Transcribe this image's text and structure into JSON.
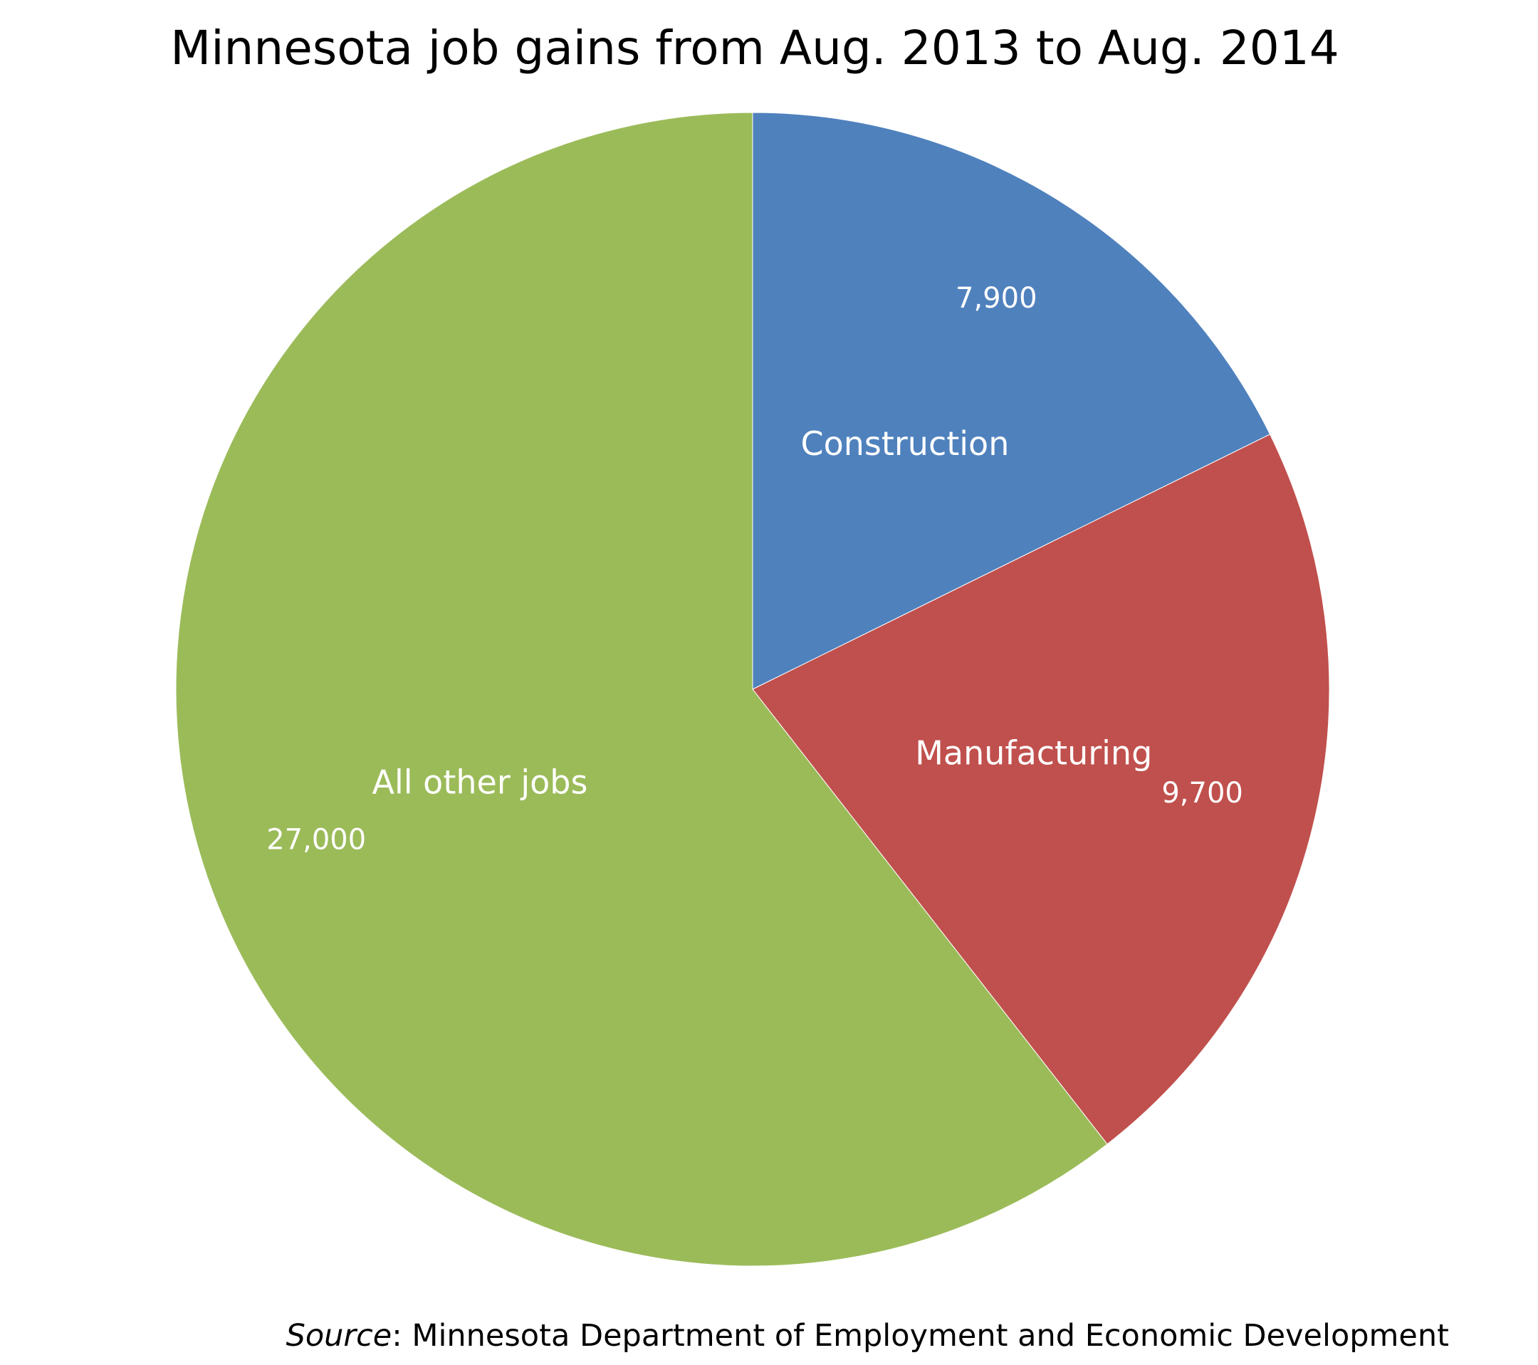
{
  "chart_data": {
    "type": "pie",
    "title": "Minnesota job gains from Aug. 2013 to Aug. 2014",
    "categories": [
      "Construction",
      "Manufacturing",
      "All other jobs"
    ],
    "values": [
      7900,
      9700,
      27000
    ],
    "value_labels": [
      "7,900",
      "9,700",
      "27,000"
    ],
    "colors": [
      "#4F81BD",
      "#C0504D",
      "#9BBB59"
    ],
    "start": "12 o'clock, clockwise",
    "legend": "none"
  },
  "source": {
    "prefix": "Source",
    "text": ": Minnesota Department of Employment and Economic Development"
  }
}
